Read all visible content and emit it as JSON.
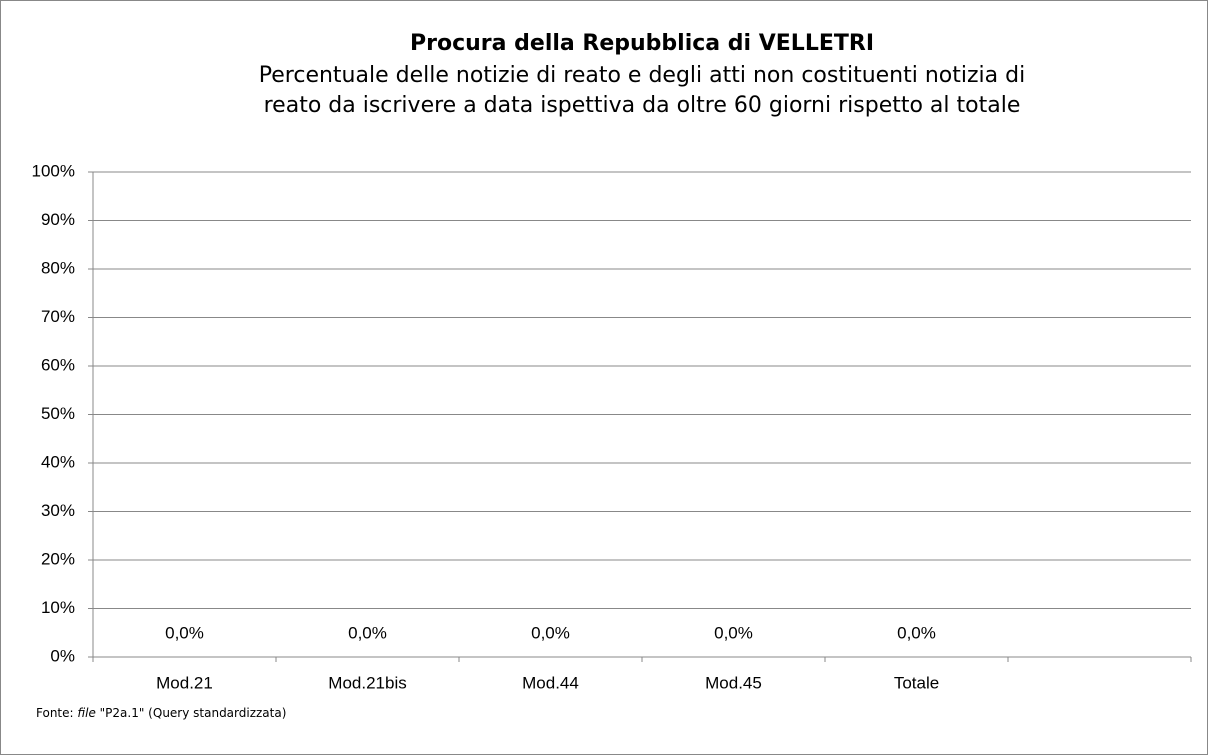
{
  "chart_data": {
    "type": "bar",
    "title": "Procura della Repubblica di VELLETRI",
    "subtitle": [
      "Percentuale delle notizie di reato e degli atti non costituenti notizia di",
      "reato da iscrivere a data ispettiva da oltre 60 giorni rispetto al totale"
    ],
    "categories": [
      "Mod.21",
      "Mod.21bis",
      "Mod.44",
      "Mod.45",
      "Totale",
      null
    ],
    "values": [
      0,
      0,
      0,
      0,
      0,
      null
    ],
    "value_labels": [
      "0,0%",
      "0,0%",
      "0,0%",
      "0,0%",
      "0,0%",
      null
    ],
    "color": "#4f81bd",
    "ylim": [
      0,
      100
    ],
    "yticks": [
      {
        "value": 0,
        "label": "0%"
      },
      {
        "value": 10,
        "label": "10%"
      },
      {
        "value": 20,
        "label": "20%"
      },
      {
        "value": 30,
        "label": "30%"
      },
      {
        "value": 40,
        "label": "40%"
      },
      {
        "value": 50,
        "label": "50%"
      },
      {
        "value": 60,
        "label": "60%"
      },
      {
        "value": 70,
        "label": "70%"
      },
      {
        "value": 80,
        "label": "80%"
      },
      {
        "value": 90,
        "label": "90%"
      },
      {
        "value": 100,
        "label": "100%"
      }
    ],
    "grid": true,
    "source": [
      "Fonte: ",
      "file",
      " \"P2a.1\" (Query standardizzata)"
    ]
  }
}
